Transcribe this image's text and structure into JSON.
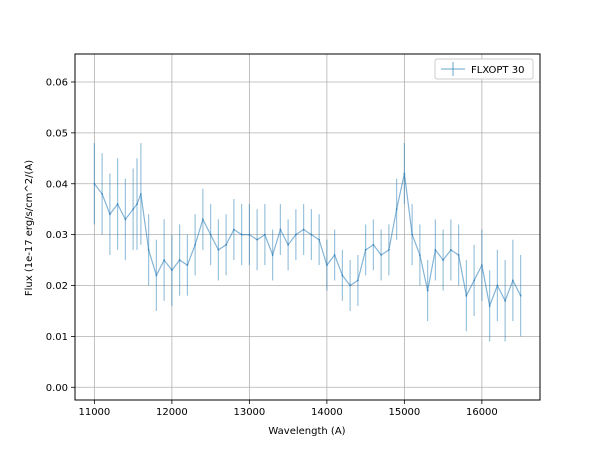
{
  "chart_data": {
    "type": "line",
    "title": "",
    "xlabel": "Wavelength (A)",
    "ylabel": "Flux (1e-17 erg/s/cm^2/(A)",
    "xlim": [
      10750,
      16750
    ],
    "ylim": [
      -0.0025,
      0.0655
    ],
    "xticks": [
      11000,
      12000,
      13000,
      14000,
      15000,
      16000
    ],
    "yticks": [
      0.0,
      0.01,
      0.02,
      0.03,
      0.04,
      0.05,
      0.06
    ],
    "xtick_labels": [
      "11000",
      "12000",
      "13000",
      "14000",
      "15000",
      "16000"
    ],
    "ytick_labels": [
      "0.00",
      "0.01",
      "0.02",
      "0.03",
      "0.04",
      "0.05",
      "0.06"
    ],
    "grid": true,
    "legend_position": "top-right",
    "series": [
      {
        "name": "FLXOPT 30",
        "color": "#1f77b4",
        "style": "errorbar",
        "x": [
          11000,
          11100,
          11200,
          11300,
          11400,
          11500,
          11550,
          11600,
          11700,
          11800,
          11900,
          12000,
          12100,
          12200,
          12300,
          12400,
          12500,
          12600,
          12700,
          12800,
          12900,
          13000,
          13100,
          13200,
          13300,
          13400,
          13500,
          13600,
          13700,
          13800,
          13900,
          14000,
          14100,
          14200,
          14300,
          14400,
          14500,
          14600,
          14700,
          14800,
          14900,
          15000,
          15100,
          15200,
          15300,
          15400,
          15500,
          15600,
          15700,
          15800,
          15900,
          16000,
          16100,
          16200,
          16300,
          16400,
          16500
        ],
        "y": [
          0.04,
          0.038,
          0.034,
          0.036,
          0.033,
          0.035,
          0.036,
          0.038,
          0.027,
          0.022,
          0.025,
          0.023,
          0.025,
          0.024,
          0.028,
          0.033,
          0.03,
          0.027,
          0.028,
          0.031,
          0.03,
          0.03,
          0.029,
          0.03,
          0.026,
          0.031,
          0.028,
          0.03,
          0.031,
          0.03,
          0.029,
          0.024,
          0.026,
          0.022,
          0.02,
          0.021,
          0.027,
          0.028,
          0.026,
          0.027,
          0.035,
          0.042,
          0.03,
          0.026,
          0.019,
          0.027,
          0.025,
          0.027,
          0.026,
          0.018,
          0.021,
          0.024,
          0.016,
          0.02,
          0.017,
          0.021,
          0.018
        ],
        "yerr": [
          0.008,
          0.008,
          0.008,
          0.009,
          0.008,
          0.008,
          0.009,
          0.01,
          0.007,
          0.007,
          0.008,
          0.007,
          0.007,
          0.006,
          0.006,
          0.006,
          0.006,
          0.006,
          0.006,
          0.006,
          0.006,
          0.006,
          0.006,
          0.006,
          0.005,
          0.005,
          0.005,
          0.005,
          0.005,
          0.005,
          0.005,
          0.005,
          0.005,
          0.005,
          0.005,
          0.005,
          0.005,
          0.005,
          0.005,
          0.005,
          0.006,
          0.006,
          0.006,
          0.006,
          0.006,
          0.006,
          0.006,
          0.006,
          0.006,
          0.007,
          0.007,
          0.007,
          0.007,
          0.007,
          0.008,
          0.008,
          0.008
        ]
      }
    ]
  }
}
